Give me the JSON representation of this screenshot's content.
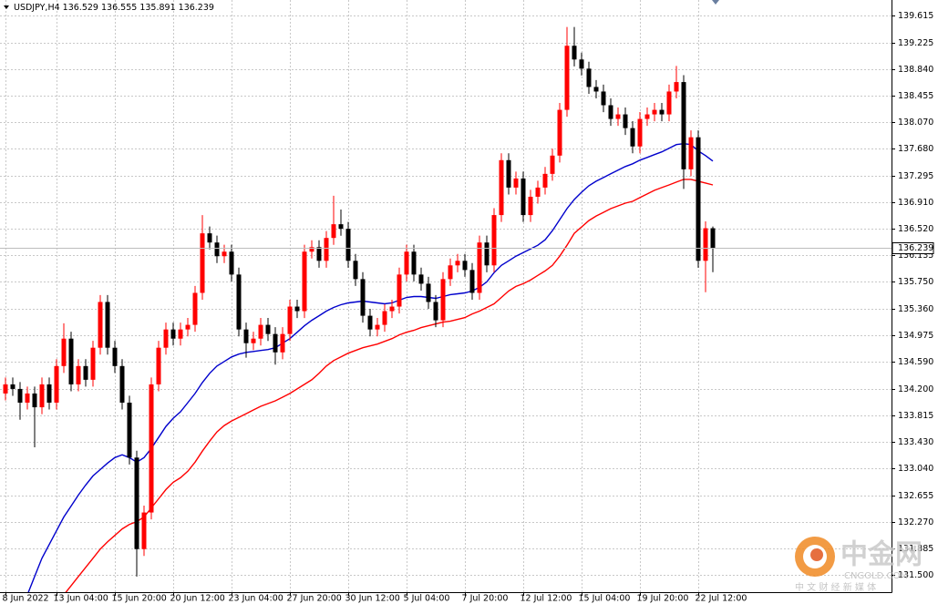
{
  "chart_data": {
    "type": "candlestick",
    "title": "USDJPY,H4",
    "categories": [
      "8 Jun 2022",
      null,
      null,
      null,
      null,
      null,
      null,
      "13 Jun 04:00",
      null,
      null,
      null,
      null,
      null,
      null,
      null,
      "15 Jun 20:00",
      null,
      null,
      null,
      null,
      null,
      null,
      null,
      "20 Jun 12:00",
      null,
      null,
      null,
      null,
      null,
      null,
      null,
      "23 Jun 04:00",
      null,
      null,
      null,
      null,
      null,
      null,
      null,
      "27 Jun 20:00",
      null,
      null,
      null,
      null,
      null,
      null,
      null,
      "30 Jun 12:00",
      null,
      null,
      null,
      null,
      null,
      null,
      null,
      "5 Jul 04:00",
      null,
      null,
      null,
      null,
      null,
      null,
      null,
      "7 Jul 20:00",
      null,
      null,
      null,
      null,
      null,
      null,
      null,
      "12 Jul 12:00",
      null,
      null,
      null,
      null,
      null,
      null,
      null,
      "15 Jul 04:00",
      null,
      null,
      null,
      null,
      null,
      null,
      null,
      "19 Jul 20:00",
      null,
      null,
      null,
      null,
      null,
      null,
      null,
      "22 Jul 12:00",
      null,
      null
    ],
    "open": [
      134.131,
      134.263,
      134.197,
      133.998,
      134.131,
      133.931,
      134.263,
      133.998,
      134.529,
      134.927,
      134.263,
      134.529,
      134.33,
      134.795,
      135.459,
      134.795,
      134.529,
      133.998,
      133.201,
      131.873,
      132.404,
      134.263,
      134.795,
      135.06,
      134.927,
      135.06,
      135.127,
      135.591,
      136.455,
      136.322,
      136.123,
      136.189,
      135.857,
      135.06,
      134.861,
      134.927,
      135.127,
      134.994,
      134.728,
      134.994,
      135.392,
      135.326,
      136.189,
      136.255,
      136.056,
      136.388,
      136.587,
      136.521,
      136.056,
      135.791,
      135.259,
      135.06,
      135.127,
      135.326,
      135.392,
      135.857,
      136.189,
      135.857,
      135.724,
      135.459,
      135.193,
      135.791,
      135.99,
      136.056,
      135.923,
      135.591,
      136.322,
      135.99,
      136.72,
      137.517,
      137.119,
      137.251,
      136.72,
      136.986,
      137.119,
      137.318,
      137.583,
      138.247,
      139.177,
      138.978,
      138.845,
      138.579,
      138.513,
      138.314,
      138.115,
      138.181,
      137.982,
      137.716,
      138.115,
      138.181,
      138.247,
      138.181,
      138.513,
      138.65,
      137.384,
      137.849,
      136.056,
      136.529
    ],
    "high": [
      134.363,
      134.363,
      134.297,
      134.231,
      134.231,
      134.363,
      134.363,
      134.629,
      135.15,
      135.027,
      134.629,
      134.629,
      134.895,
      135.559,
      135.559,
      134.895,
      134.629,
      134.098,
      133.301,
      132.504,
      134.363,
      134.895,
      135.16,
      135.16,
      135.16,
      135.227,
      135.691,
      136.72,
      136.555,
      136.422,
      136.289,
      136.289,
      135.957,
      135.16,
      135.027,
      135.227,
      135.227,
      135.094,
      135.094,
      135.492,
      135.492,
      136.289,
      136.355,
      136.355,
      136.488,
      137.0,
      136.8,
      136.621,
      136.156,
      135.891,
      135.359,
      135.227,
      135.426,
      135.492,
      135.957,
      136.289,
      136.289,
      135.957,
      135.824,
      135.559,
      135.891,
      136.09,
      136.156,
      136.156,
      136.023,
      136.422,
      136.422,
      136.82,
      137.617,
      137.617,
      137.351,
      137.351,
      137.086,
      137.219,
      137.418,
      137.683,
      138.347,
      139.45,
      139.45,
      139.078,
      138.945,
      138.679,
      138.613,
      138.414,
      138.281,
      138.281,
      138.082,
      138.215,
      138.281,
      138.347,
      138.347,
      138.613,
      138.885,
      138.75,
      137.949,
      137.949,
      136.629,
      136.555
    ],
    "low": [
      134.031,
      134.097,
      133.75,
      133.898,
      133.35,
      133.831,
      133.898,
      133.898,
      134.429,
      134.163,
      134.163,
      134.23,
      134.23,
      134.695,
      134.695,
      134.429,
      133.898,
      133.101,
      131.475,
      131.773,
      132.304,
      134.163,
      134.695,
      134.827,
      134.827,
      134.96,
      135.027,
      135.491,
      136.222,
      136.023,
      136.023,
      135.757,
      134.96,
      134.65,
      134.761,
      134.827,
      134.894,
      134.55,
      134.628,
      134.894,
      135.226,
      135.226,
      136.089,
      135.956,
      135.956,
      136.288,
      136.421,
      135.956,
      135.691,
      135.159,
      134.96,
      134.96,
      135.027,
      135.226,
      135.292,
      135.757,
      135.757,
      135.624,
      135.359,
      135.093,
      135.093,
      135.691,
      135.89,
      135.823,
      135.491,
      135.491,
      135.89,
      135.89,
      136.62,
      137.019,
      137.019,
      136.62,
      136.62,
      136.886,
      137.019,
      137.218,
      137.483,
      138.147,
      138.878,
      138.745,
      138.479,
      138.413,
      138.214,
      138.015,
      138.015,
      137.882,
      137.616,
      137.616,
      138.015,
      138.081,
      138.081,
      138.081,
      138.413,
      137.1,
      137.284,
      135.956,
      135.6,
      135.891
    ],
    "close": [
      134.263,
      134.197,
      133.998,
      134.131,
      133.931,
      134.263,
      133.998,
      134.529,
      134.927,
      134.263,
      134.529,
      134.33,
      134.795,
      135.459,
      134.795,
      134.529,
      133.998,
      133.201,
      131.873,
      132.404,
      134.263,
      134.795,
      135.06,
      134.927,
      135.06,
      135.127,
      135.591,
      136.455,
      136.322,
      136.123,
      136.189,
      135.857,
      135.06,
      134.861,
      134.927,
      135.127,
      134.994,
      134.728,
      134.994,
      135.392,
      135.326,
      136.189,
      136.255,
      136.056,
      136.388,
      136.587,
      136.521,
      136.056,
      135.791,
      135.259,
      135.06,
      135.127,
      135.326,
      135.392,
      135.857,
      136.189,
      135.857,
      135.724,
      135.459,
      135.193,
      135.791,
      135.99,
      136.056,
      135.923,
      135.591,
      136.322,
      135.99,
      136.72,
      137.517,
      137.119,
      137.251,
      136.72,
      136.986,
      137.119,
      137.318,
      137.583,
      138.247,
      139.177,
      138.978,
      138.845,
      138.579,
      138.513,
      138.314,
      138.115,
      138.181,
      137.982,
      137.716,
      138.115,
      138.181,
      138.247,
      138.181,
      138.513,
      138.65,
      137.384,
      137.849,
      136.056,
      136.529,
      136.239
    ],
    "up_color": "#ff0000",
    "down_color": "#000000",
    "lines": [
      {
        "color": "#0000cc",
        "values": [
          null,
          null,
          null,
          131.209,
          131.475,
          131.74,
          131.939,
          132.139,
          132.338,
          132.497,
          132.657,
          132.803,
          132.935,
          133.028,
          133.121,
          133.201,
          133.241,
          133.201,
          133.135,
          133.201,
          133.334,
          133.493,
          133.653,
          133.772,
          133.865,
          133.998,
          134.131,
          134.29,
          134.423,
          134.529,
          134.595,
          134.662,
          134.702,
          134.728,
          134.741,
          134.755,
          134.768,
          134.795,
          134.861,
          134.927,
          135.02,
          135.113,
          135.193,
          135.259,
          135.326,
          135.379,
          135.419,
          135.445,
          135.459,
          135.472,
          135.459,
          135.445,
          135.432,
          135.445,
          135.485,
          135.525,
          135.538,
          135.538,
          135.525,
          135.512,
          135.538,
          135.565,
          135.578,
          135.591,
          135.618,
          135.671,
          135.751,
          135.884,
          135.99,
          136.056,
          136.123,
          136.176,
          136.229,
          136.282,
          136.362,
          136.494,
          136.654,
          136.813,
          136.946,
          137.052,
          137.145,
          137.212,
          137.265,
          137.318,
          137.371,
          137.424,
          137.464,
          137.517,
          137.557,
          137.597,
          137.637,
          137.69,
          137.743,
          137.756,
          137.743,
          137.65,
          137.583,
          137.504
        ]
      },
      {
        "color": "#ff0000",
        "values": [
          null,
          null,
          null,
          null,
          null,
          null,
          null,
          null,
          131.209,
          131.342,
          131.475,
          131.607,
          131.74,
          131.873,
          131.979,
          132.072,
          132.165,
          132.232,
          132.271,
          132.338,
          132.471,
          132.603,
          132.736,
          132.842,
          132.909,
          133.002,
          133.135,
          133.294,
          133.44,
          133.573,
          133.666,
          133.732,
          133.785,
          133.838,
          133.892,
          133.945,
          133.985,
          134.024,
          134.077,
          134.131,
          134.197,
          134.263,
          134.33,
          134.423,
          134.529,
          134.609,
          134.662,
          134.715,
          134.755,
          134.795,
          134.821,
          134.848,
          134.888,
          134.927,
          134.981,
          135.02,
          135.047,
          135.087,
          135.113,
          135.14,
          135.166,
          135.18,
          135.206,
          135.233,
          135.286,
          135.326,
          135.379,
          135.432,
          135.525,
          135.618,
          135.684,
          135.724,
          135.777,
          135.844,
          135.91,
          135.99,
          136.123,
          136.282,
          136.455,
          136.548,
          136.641,
          136.707,
          136.76,
          136.813,
          136.853,
          136.893,
          136.919,
          136.973,
          137.026,
          137.079,
          137.119,
          137.158,
          137.198,
          137.238,
          137.238,
          137.212,
          137.185,
          137.158
        ]
      }
    ],
    "ylim": [
      131.248,
      139.841
    ],
    "yticks": [
      139.615,
      139.225,
      {
        "value": 138.84,
        "label": "138.840"
      },
      138.455,
      {
        "value": 138.07,
        "label": "138.070"
      },
      {
        "value": 137.68,
        "label": "137.680"
      },
      137.295,
      {
        "value": 136.91,
        "label": "136.910"
      },
      {
        "value": 136.52,
        "label": "136.520"
      },
      136.135,
      {
        "value": 135.75,
        "label": "135.750"
      },
      {
        "value": 135.36,
        "label": "135.360"
      },
      134.975,
      {
        "value": 134.59,
        "label": "134.590"
      },
      {
        "value": 134.2,
        "label": "134.200"
      },
      133.815,
      {
        "value": 133.43,
        "label": "133.430"
      },
      {
        "value": 133.04,
        "label": "133.040"
      },
      132.655,
      {
        "value": 132.27,
        "label": "132.270"
      },
      131.885,
      {
        "value": 131.5,
        "label": "131.500"
      }
    ],
    "grid": true
  },
  "watermark": {
    "name": "中金网",
    "site": "CNGOLD.COM",
    "slogan": "中 文 财 经 新 媒 体"
  }
}
